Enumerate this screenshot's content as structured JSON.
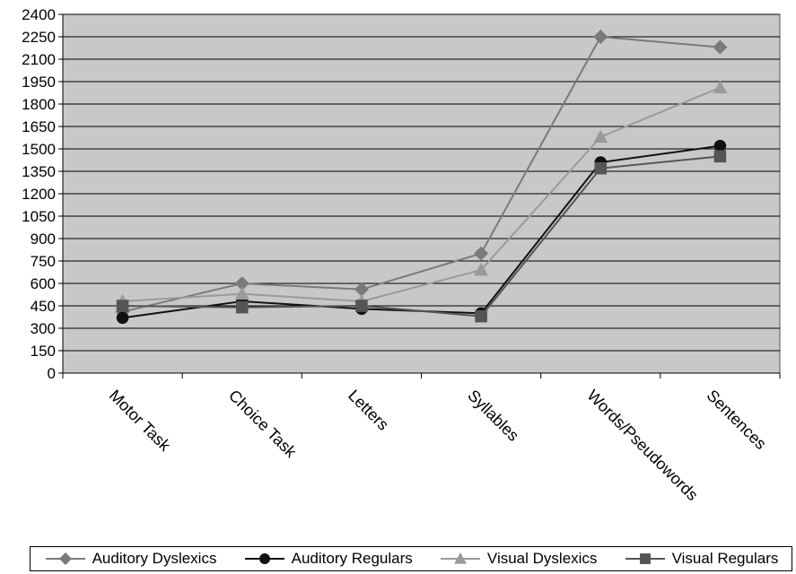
{
  "chart_data": {
    "type": "line",
    "title": "",
    "xlabel": "",
    "ylabel": "",
    "categories": [
      "Motor Task",
      "Choice Task",
      "Letters",
      "Syllables",
      "Words/Pseudowords",
      "Sentences"
    ],
    "ylim": [
      0,
      2400
    ],
    "yticks": [
      0,
      150,
      300,
      450,
      600,
      750,
      900,
      1050,
      1200,
      1350,
      1500,
      1650,
      1800,
      1950,
      2100,
      2250,
      2400
    ],
    "grid": true,
    "legend_position": "bottom",
    "series": [
      {
        "name": "Auditory Dyslexics",
        "marker": "diamond",
        "color": "#7a7a7a",
        "values": [
          410,
          600,
          560,
          800,
          2250,
          2180
        ]
      },
      {
        "name": "Auditory Regulars",
        "marker": "circle",
        "color": "#111111",
        "values": [
          370,
          480,
          430,
          400,
          1410,
          1520
        ]
      },
      {
        "name": "Visual Dyslexics",
        "marker": "triangle",
        "color": "#9a9a9a",
        "values": [
          480,
          530,
          480,
          690,
          1580,
          1910
        ]
      },
      {
        "name": "Visual Regulars",
        "marker": "square",
        "color": "#555555",
        "values": [
          450,
          440,
          450,
          380,
          1370,
          1450
        ]
      }
    ]
  }
}
